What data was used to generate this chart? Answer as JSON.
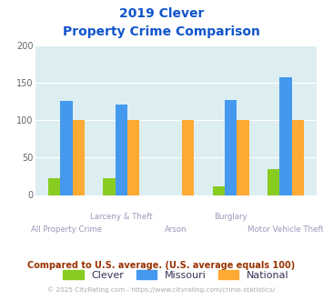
{
  "title_line1": "2019 Clever",
  "title_line2": "Property Crime Comparison",
  "categories": [
    "All Property Crime",
    "Larceny & Theft",
    "Arson",
    "Burglary",
    "Motor Vehicle Theft"
  ],
  "clever": [
    22,
    22,
    0,
    12,
    35
  ],
  "missouri": [
    125,
    120,
    0,
    127,
    157
  ],
  "national": [
    100,
    100,
    100,
    100,
    100
  ],
  "clever_color": "#88cc22",
  "missouri_color": "#4499ee",
  "national_color": "#ffaa33",
  "bg_color": "#ddeef2",
  "ylim": [
    0,
    200
  ],
  "yticks": [
    0,
    50,
    100,
    150,
    200
  ],
  "bar_width": 0.22,
  "title_color": "#1155cc",
  "xlabel_color": "#9999bb",
  "note_color": "#993300",
  "credit_color": "#aaaaaa",
  "note_text": "Compared to U.S. average. (U.S. average equals 100)",
  "credit_text": "© 2025 CityRating.com - https://www.cityrating.com/crime-statistics/",
  "upper_labels": [
    "",
    "Larceny & Theft",
    "",
    "Burglary",
    ""
  ],
  "lower_labels": [
    "All Property Crime",
    "",
    "Arson",
    "",
    "Motor Vehicle Theft"
  ]
}
